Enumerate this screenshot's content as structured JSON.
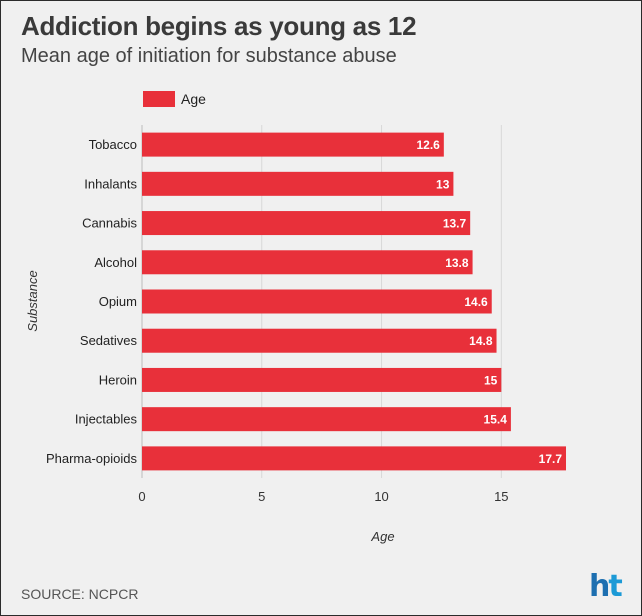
{
  "header": {
    "title": "Addiction begins as young as 12",
    "subtitle": "Mean age of initiation for substance abuse"
  },
  "legend": {
    "label": "Age",
    "color": "#e8303a"
  },
  "footer": {
    "source": "SOURCE: NCPCR",
    "logo_text": "ht"
  },
  "chart_data": {
    "type": "bar",
    "orientation": "horizontal",
    "title": "Addiction begins as young as 12",
    "subtitle": "Mean age of initiation for substance abuse",
    "xlabel": "Age",
    "ylabel": "Substance",
    "xlim": [
      0,
      17.7
    ],
    "xticks": [
      0,
      5,
      10,
      15
    ],
    "grid": true,
    "legend_position": "top-left",
    "bar_color": "#e8303a",
    "categories": [
      "Tobacco",
      "Inhalants",
      "Cannabis",
      "Alcohol",
      "Opium",
      "Sedatives",
      "Heroin",
      "Injectables",
      "Pharma-opioids"
    ],
    "series": [
      {
        "name": "Age",
        "values": [
          12.6,
          13,
          13.7,
          13.8,
          14.6,
          14.8,
          15,
          15.4,
          17.7
        ],
        "labels": [
          "12.6",
          "13",
          "13.7",
          "13.8",
          "14.6",
          "14.8",
          "15",
          "15.4",
          "17.7"
        ]
      }
    ]
  }
}
